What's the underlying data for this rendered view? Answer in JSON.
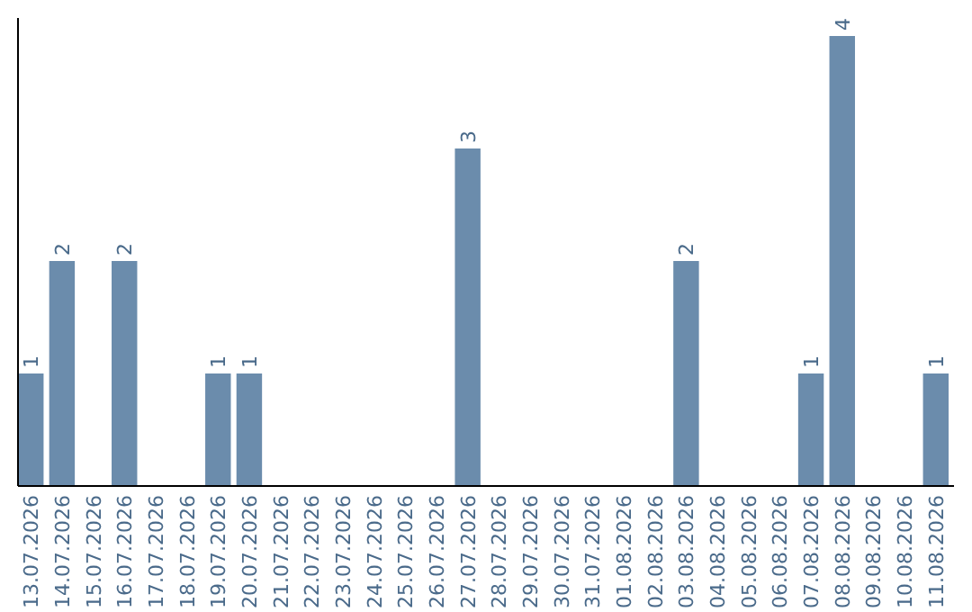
{
  "chart_data": {
    "type": "bar",
    "categories": [
      "13.07.2026",
      "14.07.2026",
      "15.07.2026",
      "16.07.2026",
      "17.07.2026",
      "18.07.2026",
      "19.07.2026",
      "20.07.2026",
      "21.07.2026",
      "22.07.2026",
      "23.07.2026",
      "24.07.2026",
      "25.07.2026",
      "26.07.2026",
      "27.07.2026",
      "28.07.2026",
      "29.07.2026",
      "30.07.2026",
      "31.07.2026",
      "01.08.2026",
      "02.08.2026",
      "03.08.2026",
      "04.08.2026",
      "05.08.2026",
      "06.08.2026",
      "07.08.2026",
      "08.08.2026",
      "09.08.2026",
      "10.08.2026",
      "11.08.2026"
    ],
    "values": [
      1,
      2,
      0,
      2,
      0,
      0,
      1,
      1,
      0,
      0,
      0,
      0,
      0,
      0,
      3,
      0,
      0,
      0,
      0,
      0,
      0,
      2,
      0,
      0,
      0,
      1,
      4,
      0,
      0,
      1
    ],
    "value_labels": [
      "1",
      "2",
      null,
      "2",
      null,
      null,
      "1",
      "1",
      null,
      null,
      null,
      null,
      null,
      null,
      "3",
      null,
      null,
      null,
      null,
      null,
      null,
      "2",
      null,
      null,
      null,
      "1",
      "4",
      null,
      null,
      "1"
    ],
    "color": "#6b8cac",
    "ylim": [
      0,
      4
    ],
    "tick_labels": "x",
    "grid": false
  }
}
